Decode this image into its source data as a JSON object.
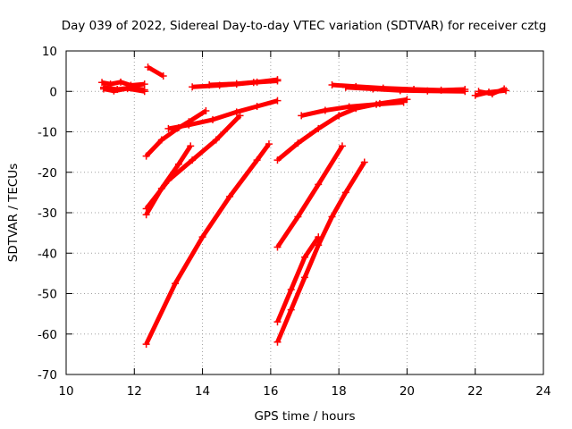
{
  "chart_data": {
    "type": "scatter",
    "title": "Day 039 of 2022, Sidereal Day-to-day VTEC variation (SDTVAR) for receiver cztg",
    "xlabel": "GPS time / hours",
    "ylabel": "SDTVAR / TECUs",
    "xlim": [
      10,
      24
    ],
    "ylim": [
      -70,
      10
    ],
    "xticks": [
      "10",
      "12",
      "14",
      "16",
      "18",
      "20",
      "22",
      "24"
    ],
    "yticks": [
      "-70",
      "-60",
      "-50",
      "-40",
      "-30",
      "-20",
      "-10",
      "0",
      "10"
    ],
    "grid": true,
    "marker": "plus",
    "color": "#ff0000",
    "series": [
      {
        "x": [
          11.05,
          11.3,
          11.6,
          11.9,
          12.3
        ],
        "y": [
          2.2,
          1.8,
          2.3,
          1.5,
          1.8
        ]
      },
      {
        "x": [
          11.1,
          11.4,
          11.8,
          12.3
        ],
        "y": [
          0.6,
          0.1,
          0.7,
          0.0
        ]
      },
      {
        "x": [
          11.1,
          11.5,
          11.9,
          12.3
        ],
        "y": [
          1.0,
          0.5,
          0.9,
          0.4
        ]
      },
      {
        "x": [
          12.4,
          12.85
        ],
        "y": [
          6.0,
          3.8
        ]
      },
      {
        "x": [
          13.7,
          14.5,
          15.0,
          15.5,
          16.2
        ],
        "y": [
          1.1,
          1.5,
          1.8,
          2.2,
          2.6
        ]
      },
      {
        "x": [
          14.2,
          15.0,
          15.6,
          16.2
        ],
        "y": [
          1.6,
          1.9,
          2.3,
          2.9
        ]
      },
      {
        "x": [
          17.8,
          18.5,
          19.3,
          20.2,
          21.0,
          21.7
        ],
        "y": [
          1.6,
          1.2,
          0.8,
          0.5,
          0.3,
          0.5
        ]
      },
      {
        "x": [
          18.2,
          19.0,
          19.8,
          20.6,
          21.7
        ],
        "y": [
          1.0,
          0.6,
          0.2,
          0.1,
          0.0
        ]
      },
      {
        "x": [
          22.0,
          22.4,
          22.9
        ],
        "y": [
          -1.0,
          -0.2,
          0.2
        ]
      },
      {
        "x": [
          22.1,
          22.5,
          22.85
        ],
        "y": [
          0.0,
          -0.6,
          0.6
        ]
      },
      {
        "x": [
          12.35,
          12.8,
          13.3,
          13.6,
          14.1
        ],
        "y": [
          -16,
          -12,
          -9,
          -7.5,
          -4.8
        ]
      },
      {
        "x": [
          13.0,
          13.6,
          14.3,
          15.0,
          15.6,
          16.2
        ],
        "y": [
          -9.2,
          -8.3,
          -7.0,
          -5.1,
          -3.7,
          -2.3
        ]
      },
      {
        "x": [
          12.35,
          12.8,
          13.3,
          13.65
        ],
        "y": [
          -30.5,
          -24,
          -18,
          -13.5
        ]
      },
      {
        "x": [
          12.35,
          13.0,
          13.7,
          14.4,
          15.1
        ],
        "y": [
          -29,
          -22,
          -17,
          -12,
          -6
        ]
      },
      {
        "x": [
          12.35,
          13.2,
          14.0,
          14.8,
          15.6,
          15.95
        ],
        "y": [
          -62.5,
          -47.5,
          -36,
          -26,
          -17,
          -13
        ]
      },
      {
        "x": [
          16.2,
          16.8,
          17.4,
          18.1
        ],
        "y": [
          -38.5,
          -31,
          -23,
          -13.5
        ]
      },
      {
        "x": [
          16.2,
          16.6,
          17.0,
          17.4,
          17.8,
          18.2,
          18.75
        ],
        "y": [
          -62,
          -54,
          -46,
          -38,
          -31,
          -25,
          -17.5
        ]
      },
      {
        "x": [
          16.2,
          16.6,
          17.0,
          17.4
        ],
        "y": [
          -57,
          -49,
          -41,
          -36
        ]
      },
      {
        "x": [
          16.2,
          16.8,
          17.4,
          18.0,
          18.5,
          19.2,
          20.0
        ],
        "y": [
          -17,
          -12.8,
          -9.2,
          -6.0,
          -4.2,
          -3.0,
          -2.0
        ]
      },
      {
        "x": [
          16.9,
          17.6,
          18.3,
          19.1,
          19.9
        ],
        "y": [
          -6.0,
          -4.7,
          -3.8,
          -3.2,
          -2.7
        ]
      }
    ]
  }
}
